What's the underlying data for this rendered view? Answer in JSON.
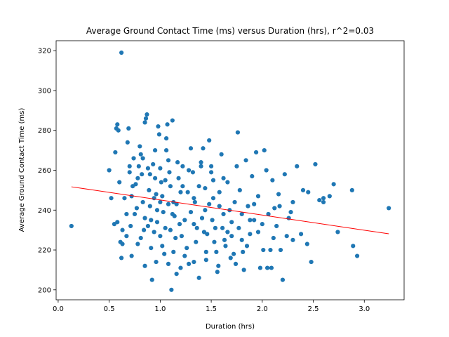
{
  "chart_data": {
    "type": "scatter",
    "title": "Average Ground Contact Time (ms) versus Duration (hrs), r^2=0.03",
    "xlabel": "Duration (hrs)",
    "ylabel": "Average Ground Contact Time (ms)",
    "xlim": [
      -0.02,
      3.39
    ],
    "ylim": [
      195,
      325
    ],
    "xticks": [
      0.0,
      0.5,
      1.0,
      1.5,
      2.0,
      2.5,
      3.0
    ],
    "xtick_labels": [
      "0.0",
      "0.5",
      "1.0",
      "1.5",
      "2.0",
      "2.5",
      "3.0"
    ],
    "yticks": [
      200,
      220,
      240,
      260,
      280,
      300,
      320
    ],
    "ytick_labels": [
      "200",
      "220",
      "240",
      "260",
      "280",
      "300",
      "320"
    ],
    "grid": false,
    "colors": {
      "points": "#1f77b4",
      "fit_line": "#ff0000"
    },
    "series": [
      {
        "type": "scatter",
        "points": [
          [
            0.13,
            232
          ],
          [
            0.62,
            319
          ],
          [
            0.5,
            260
          ],
          [
            0.55,
            233
          ],
          [
            0.56,
            269
          ],
          [
            0.57,
            281
          ],
          [
            0.58,
            283
          ],
          [
            0.59,
            280
          ],
          [
            0.6,
            254
          ],
          [
            0.61,
            224
          ],
          [
            0.62,
            216
          ],
          [
            0.63,
            223
          ],
          [
            0.65,
            246
          ],
          [
            0.67,
            227
          ],
          [
            0.68,
            274
          ],
          [
            0.69,
            281
          ],
          [
            0.7,
            259
          ],
          [
            0.72,
            247
          ],
          [
            0.74,
            266
          ],
          [
            0.75,
            238
          ],
          [
            0.76,
            253
          ],
          [
            0.78,
            223
          ],
          [
            0.79,
            262
          ],
          [
            0.8,
            272
          ],
          [
            0.81,
            268
          ],
          [
            0.82,
            258
          ],
          [
            0.83,
            244
          ],
          [
            0.84,
            230
          ],
          [
            0.85,
            284
          ],
          [
            0.86,
            286
          ],
          [
            0.87,
            288
          ],
          [
            0.88,
            261
          ],
          [
            0.89,
            250
          ],
          [
            0.9,
            242
          ],
          [
            0.91,
            235
          ],
          [
            0.92,
            205
          ],
          [
            0.93,
            263
          ],
          [
            0.94,
            229
          ],
          [
            0.95,
            256
          ],
          [
            0.96,
            248
          ],
          [
            0.97,
            240
          ],
          [
            0.98,
            282
          ],
          [
            0.99,
            278
          ],
          [
            1.0,
            261
          ],
          [
            1.01,
            254
          ],
          [
            1.02,
            247
          ],
          [
            1.03,
            239
          ],
          [
            1.04,
            218
          ],
          [
            1.05,
            231
          ],
          [
            1.06,
            270
          ],
          [
            1.07,
            283
          ],
          [
            1.08,
            265
          ],
          [
            1.09,
            259
          ],
          [
            1.1,
            252
          ],
          [
            1.11,
            200
          ],
          [
            1.12,
            285
          ],
          [
            1.13,
            244
          ],
          [
            1.14,
            237
          ],
          [
            1.15,
            226
          ],
          [
            1.16,
            208
          ],
          [
            1.18,
            256
          ],
          [
            1.2,
            249
          ],
          [
            1.22,
            262
          ],
          [
            1.24,
            235
          ],
          [
            1.26,
            221
          ],
          [
            1.28,
            213
          ],
          [
            1.3,
            271
          ],
          [
            1.32,
            259
          ],
          [
            1.34,
            244
          ],
          [
            1.36,
            231
          ],
          [
            1.38,
            206
          ],
          [
            1.4,
            262
          ],
          [
            1.42,
            271
          ],
          [
            1.44,
            240
          ],
          [
            1.46,
            228
          ],
          [
            1.48,
            275
          ],
          [
            1.5,
            259
          ],
          [
            1.52,
            246
          ],
          [
            1.54,
            231
          ],
          [
            1.56,
            209
          ],
          [
            1.58,
            249
          ],
          [
            1.6,
            268
          ],
          [
            1.62,
            238
          ],
          [
            1.64,
            222
          ],
          [
            1.66,
            254
          ],
          [
            1.68,
            240
          ],
          [
            1.7,
            227
          ],
          [
            1.72,
            218
          ],
          [
            1.74,
            213
          ],
          [
            1.76,
            279
          ],
          [
            1.78,
            250
          ],
          [
            1.8,
            238
          ],
          [
            1.82,
            210
          ],
          [
            1.84,
            265
          ],
          [
            1.86,
            242
          ],
          [
            1.88,
            228
          ],
          [
            1.9,
            257
          ],
          [
            1.92,
            235
          ],
          [
            1.94,
            269
          ],
          [
            1.96,
            247
          ],
          [
            1.98,
            211
          ],
          [
            2.0,
            233
          ],
          [
            2.02,
            270
          ],
          [
            2.04,
            260
          ],
          [
            2.06,
            238
          ],
          [
            2.08,
            220
          ],
          [
            2.1,
            255
          ],
          [
            2.12,
            241
          ],
          [
            2.14,
            232
          ],
          [
            2.16,
            248
          ],
          [
            2.18,
            220
          ],
          [
            2.2,
            205
          ],
          [
            2.22,
            258
          ],
          [
            2.24,
            227
          ],
          [
            2.26,
            236
          ],
          [
            2.3,
            244
          ],
          [
            2.34,
            262
          ],
          [
            2.38,
            228
          ],
          [
            2.4,
            250
          ],
          [
            2.44,
            223
          ],
          [
            2.48,
            214
          ],
          [
            2.52,
            263
          ],
          [
            2.56,
            245
          ],
          [
            2.6,
            246
          ],
          [
            2.66,
            247
          ],
          [
            2.7,
            253
          ],
          [
            2.74,
            229
          ],
          [
            2.88,
            250
          ],
          [
            2.89,
            222
          ],
          [
            2.93,
            217
          ],
          [
            3.24,
            241
          ],
          [
            0.52,
            246
          ],
          [
            0.58,
            234
          ],
          [
            0.63,
            230
          ],
          [
            0.67,
            238
          ],
          [
            0.71,
            232
          ],
          [
            0.73,
            252
          ],
          [
            0.77,
            241
          ],
          [
            0.81,
            226
          ],
          [
            0.85,
            236
          ],
          [
            0.88,
            232
          ],
          [
            0.91,
            221
          ],
          [
            0.94,
            246
          ],
          [
            0.97,
            234
          ],
          [
            1.0,
            227
          ],
          [
            1.02,
            222
          ],
          [
            1.05,
            255
          ],
          [
            1.08,
            243
          ],
          [
            1.1,
            230
          ],
          [
            1.13,
            219
          ],
          [
            1.16,
            243
          ],
          [
            1.19,
            233
          ],
          [
            1.21,
            227
          ],
          [
            1.24,
            217
          ],
          [
            1.27,
            249
          ],
          [
            1.3,
            239
          ],
          [
            1.33,
            233
          ],
          [
            1.35,
            224
          ],
          [
            1.38,
            252
          ],
          [
            1.41,
            236
          ],
          [
            1.43,
            229
          ],
          [
            1.45,
            219
          ],
          [
            1.48,
            243
          ],
          [
            1.51,
            235
          ],
          [
            1.53,
            224
          ],
          [
            1.55,
            219
          ],
          [
            1.58,
            242
          ],
          [
            1.61,
            231
          ],
          [
            1.63,
            225
          ],
          [
            1.66,
            229
          ],
          [
            1.7,
            234
          ],
          [
            1.73,
            244
          ],
          [
            1.77,
            231
          ],
          [
            1.8,
            225
          ],
          [
            1.85,
            222
          ],
          [
            1.88,
            235
          ],
          [
            1.92,
            243
          ],
          [
            1.96,
            229
          ],
          [
            2.01,
            220
          ],
          [
            2.05,
            211
          ],
          [
            2.11,
            226
          ],
          [
            2.17,
            242
          ],
          [
            2.28,
            239
          ],
          [
            2.45,
            249
          ],
          [
            2.6,
            244
          ],
          [
            0.78,
            256
          ],
          [
            0.9,
            258
          ],
          [
            1.0,
            244
          ],
          [
            1.12,
            238
          ],
          [
            1.22,
            252
          ],
          [
            1.33,
            246
          ],
          [
            1.44,
            251
          ],
          [
            1.52,
            255
          ],
          [
            1.62,
            256
          ],
          [
            1.75,
            262
          ],
          [
            0.7,
            262
          ],
          [
            0.83,
            266
          ],
          [
            0.95,
            270
          ],
          [
            1.06,
            276
          ],
          [
            1.17,
            264
          ],
          [
            1.28,
            260
          ],
          [
            1.4,
            264
          ],
          [
            1.5,
            262
          ],
          [
            0.72,
            217
          ],
          [
            0.85,
            212
          ],
          [
            0.96,
            214
          ],
          [
            1.08,
            213
          ],
          [
            1.2,
            211
          ],
          [
            1.33,
            214
          ],
          [
            1.45,
            215
          ],
          [
            1.57,
            212
          ],
          [
            1.69,
            216
          ],
          [
            1.81,
            219
          ],
          [
            2.09,
            211
          ],
          [
            2.3,
            225
          ]
        ]
      },
      {
        "type": "line",
        "name": "",
        "x": [
          0.13,
          3.24
        ],
        "y": [
          251.7,
          228.1
        ]
      }
    ]
  }
}
